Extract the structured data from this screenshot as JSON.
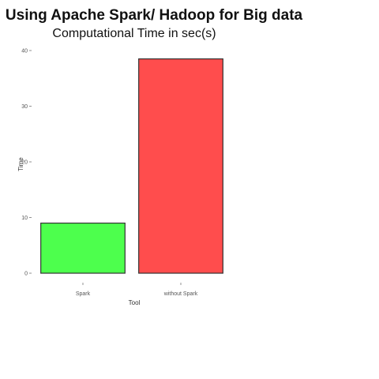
{
  "chart_data": {
    "type": "bar",
    "title": "Using Apache Spark/ Hadoop for Big data",
    "subtitle": "Computational Time in sec(s)",
    "xlabel": "Tool",
    "ylabel": "Time",
    "categories": [
      "Spark",
      "without Spark"
    ],
    "values": [
      9,
      38.5
    ],
    "colors": [
      "#4dff4d",
      "#ff4d4d"
    ],
    "ylim": [
      0,
      40
    ],
    "yticks": [
      0,
      10,
      20,
      30,
      40
    ],
    "grid": false,
    "legend": "none"
  }
}
